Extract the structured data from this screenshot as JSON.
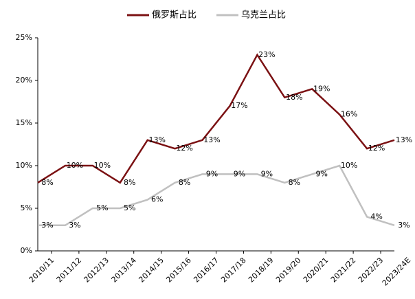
{
  "chart_data": {
    "type": "line",
    "categories": [
      "2010/11",
      "2011/12",
      "2012/13",
      "2013/14",
      "2014/15",
      "2015/16",
      "2016/17",
      "2017/18",
      "2018/19",
      "2019/20",
      "2020/21",
      "2021/22",
      "2022/23",
      "2023/24E"
    ],
    "series": [
      {
        "name": "俄罗斯占比",
        "color": "#7b1113",
        "values": [
          8,
          10,
          10,
          8,
          13,
          12,
          13,
          17,
          23,
          18,
          19,
          16,
          12,
          13
        ],
        "value_labels": [
          "8%",
          "10%",
          "10%",
          "8%",
          "13%",
          "12%",
          "13%",
          "17%",
          "23%",
          "18%",
          "19%",
          "16%",
          "12%",
          "13%"
        ]
      },
      {
        "name": "乌克兰占比",
        "color": "#c0c0c0",
        "values": [
          3,
          3,
          5,
          5,
          6,
          8,
          9,
          9,
          9,
          8,
          9,
          10,
          4,
          3
        ],
        "value_labels": [
          "3%",
          "3%",
          "5%",
          "5%",
          "6%",
          "8%",
          "9%",
          "9%",
          "9%",
          "8%",
          "9%",
          "10%",
          "4%",
          "3%"
        ]
      }
    ],
    "ylim": [
      0,
      25
    ],
    "yticks": [
      {
        "value": 0,
        "label": "0%"
      },
      {
        "value": 5,
        "label": "5%"
      },
      {
        "value": 10,
        "label": "10%"
      },
      {
        "value": 15,
        "label": "15%"
      },
      {
        "value": 20,
        "label": "20%"
      },
      {
        "value": 25,
        "label": "25%"
      }
    ],
    "legend": "top"
  }
}
